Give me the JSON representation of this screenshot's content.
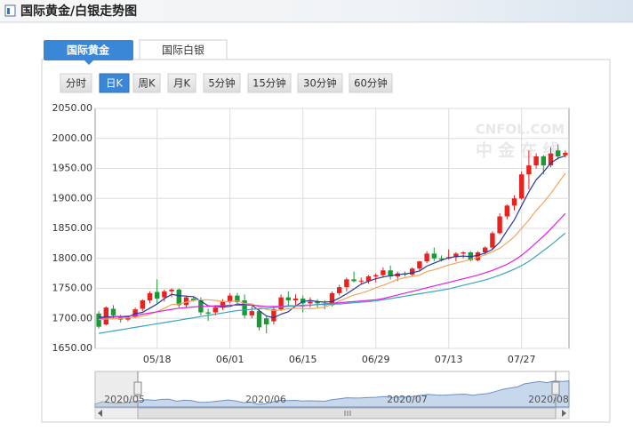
{
  "header": {
    "title": "国际黄金/白银走势图"
  },
  "tabs": [
    "国际黄金",
    "国际白银"
  ],
  "buttons": [
    "分时",
    "日K",
    "周K",
    "月K",
    "5分钟",
    "15分钟",
    "30分钟",
    "60分钟"
  ],
  "watermark": [
    "CNFOL.COM",
    "中金在线"
  ],
  "chart_data": {
    "type": "candlestick",
    "categories": [
      null,
      null,
      null,
      null,
      null,
      null,
      null,
      null,
      "05/18",
      null,
      null,
      null,
      null,
      null,
      null,
      null,
      null,
      null,
      "06/01",
      null,
      null,
      null,
      null,
      null,
      null,
      null,
      null,
      null,
      "06/15",
      null,
      null,
      null,
      null,
      null,
      null,
      null,
      null,
      null,
      "06/29",
      null,
      null,
      null,
      null,
      null,
      null,
      null,
      null,
      null,
      "07/13",
      null,
      null,
      null,
      null,
      null,
      null,
      null,
      null,
      null,
      "07/27",
      null,
      null,
      null,
      null,
      null,
      null
    ],
    "open": [
      1708,
      1690,
      1716,
      1703,
      1698,
      1702,
      1716,
      1730,
      1744,
      1735,
      1745,
      1748,
      1722,
      1733,
      1730,
      1710,
      1710,
      1718,
      1728,
      1738,
      1730,
      1705,
      1712,
      1700,
      1695,
      1715,
      1735,
      1730,
      1733,
      1725,
      1728,
      1725,
      1722,
      1742,
      1752,
      1765,
      1762,
      1762,
      1770,
      1772,
      1780,
      1770,
      1775,
      1773,
      1783,
      1795,
      1808,
      1800,
      1800,
      1802,
      1808,
      1810,
      1797,
      1810,
      1818,
      1842,
      1870,
      1888,
      1900,
      1940,
      1955,
      1970,
      1955,
      1980,
      1972
    ],
    "high": [
      1712,
      1720,
      1722,
      1706,
      1704,
      1718,
      1732,
      1745,
      1765,
      1748,
      1750,
      1750,
      1738,
      1736,
      1735,
      1716,
      1722,
      1732,
      1742,
      1742,
      1740,
      1720,
      1715,
      1705,
      1720,
      1740,
      1745,
      1740,
      1738,
      1735,
      1732,
      1730,
      1745,
      1756,
      1768,
      1778,
      1768,
      1772,
      1775,
      1785,
      1788,
      1778,
      1778,
      1785,
      1796,
      1812,
      1818,
      1805,
      1815,
      1810,
      1812,
      1812,
      1812,
      1820,
      1845,
      1875,
      1890,
      1905,
      1945,
      1980,
      1975,
      1972,
      1985,
      1990,
      1980
    ],
    "low": [
      1683,
      1688,
      1700,
      1693,
      1695,
      1700,
      1712,
      1725,
      1725,
      1728,
      1735,
      1718,
      1718,
      1728,
      1705,
      1696,
      1705,
      1714,
      1725,
      1725,
      1700,
      1700,
      1680,
      1675,
      1690,
      1712,
      1720,
      1720,
      1710,
      1718,
      1718,
      1715,
      1720,
      1738,
      1745,
      1760,
      1758,
      1758,
      1760,
      1768,
      1765,
      1762,
      1770,
      1770,
      1780,
      1792,
      1795,
      1795,
      1798,
      1795,
      1800,
      1795,
      1795,
      1805,
      1815,
      1840,
      1865,
      1880,
      1898,
      1915,
      1950,
      1940,
      1952,
      1965,
      1968
    ],
    "close": [
      1686,
      1718,
      1705,
      1698,
      1702,
      1715,
      1730,
      1742,
      1733,
      1745,
      1748,
      1722,
      1735,
      1730,
      1710,
      1708,
      1718,
      1728,
      1738,
      1727,
      1705,
      1712,
      1685,
      1690,
      1715,
      1735,
      1730,
      1733,
      1725,
      1728,
      1725,
      1722,
      1742,
      1752,
      1765,
      1762,
      1763,
      1770,
      1772,
      1780,
      1770,
      1775,
      1773,
      1783,
      1795,
      1808,
      1800,
      1798,
      1802,
      1808,
      1810,
      1797,
      1810,
      1818,
      1842,
      1870,
      1888,
      1900,
      1940,
      1955,
      1970,
      1955,
      1975,
      1970,
      1976
    ],
    "up_color": "#e8231f",
    "down_color": "#1a9a35",
    "series": [
      {
        "color": "#26389a",
        "values": [
          1702,
          1702,
          1703,
          1703,
          1702,
          1708,
          1710,
          1717,
          1724,
          1733,
          1740,
          1738,
          1737,
          1736,
          1729,
          1721,
          1720,
          1719,
          1720,
          1724,
          1723,
          1722,
          1713,
          1704,
          1701,
          1707,
          1711,
          1721,
          1728,
          1730,
          1728,
          1727,
          1728,
          1734,
          1741,
          1749,
          1757,
          1762,
          1766,
          1769,
          1771,
          1773,
          1774,
          1776,
          1779,
          1787,
          1792,
          1797,
          1801,
          1803,
          1804,
          1803,
          1805,
          1809,
          1815,
          1827,
          1846,
          1864,
          1888,
          1911,
          1931,
          1944,
          1959,
          1967,
          1971
        ]
      },
      {
        "color": "#f2a45a",
        "values": [
          1698,
          1699,
          1699,
          1700,
          1701,
          1702,
          1704,
          1707,
          1711,
          1717,
          1723,
          1724,
          1727,
          1730,
          1731,
          1731,
          1730,
          1728,
          1728,
          1729,
          1725,
          1724,
          1719,
          1715,
          1713,
          1714,
          1716,
          1717,
          1716,
          1716,
          1717,
          1719,
          1723,
          1729,
          1734,
          1739,
          1742,
          1746,
          1751,
          1755,
          1760,
          1765,
          1768,
          1770,
          1772,
          1778,
          1781,
          1785,
          1789,
          1792,
          1795,
          1798,
          1802,
          1806,
          1811,
          1817,
          1826,
          1836,
          1850,
          1864,
          1880,
          1893,
          1908,
          1925,
          1942
        ]
      },
      {
        "color": "#e21ee0",
        "values": [
          1700,
          1701,
          1702,
          1703,
          1704,
          1705,
          1707,
          1709,
          1711,
          1713,
          1715,
          1717,
          1718,
          1719,
          1720,
          1720,
          1721,
          1721,
          1722,
          1722,
          1722,
          1722,
          1721,
          1720,
          1720,
          1720,
          1721,
          1721,
          1721,
          1722,
          1723,
          1724,
          1725,
          1726,
          1727,
          1728,
          1729,
          1730,
          1731,
          1733,
          1736,
          1739,
          1742,
          1745,
          1748,
          1751,
          1754,
          1757,
          1760,
          1763,
          1766,
          1769,
          1772,
          1776,
          1780,
          1785,
          1790,
          1797,
          1805,
          1815,
          1826,
          1837,
          1849,
          1862,
          1875
        ]
      },
      {
        "color": "#3aa6b8",
        "values": [
          1675,
          1677,
          1679,
          1681,
          1683,
          1685,
          1687,
          1689,
          1691,
          1693,
          1695,
          1697,
          1699,
          1701,
          1703,
          1705,
          1707,
          1709,
          1711,
          1713,
          1714,
          1715,
          1716,
          1717,
          1718,
          1719,
          1720,
          1721,
          1722,
          1722,
          1723,
          1723,
          1724,
          1724,
          1725,
          1726,
          1727,
          1728,
          1729,
          1731,
          1733,
          1735,
          1737,
          1739,
          1741,
          1743,
          1745,
          1747,
          1749,
          1752,
          1755,
          1758,
          1761,
          1764,
          1768,
          1772,
          1777,
          1782,
          1788,
          1795,
          1804,
          1813,
          1822,
          1832,
          1842
        ]
      }
    ],
    "ylim": [
      1650,
      2050
    ],
    "yticks": [
      {
        "value": 1650,
        "label": "1650.00"
      },
      {
        "value": 1700,
        "label": "1700.00"
      },
      {
        "value": 1750,
        "label": "1750.00"
      },
      {
        "value": 1800,
        "label": "1800.00"
      },
      {
        "value": 1850,
        "label": "1850.00"
      },
      {
        "value": 1900,
        "label": "1900.00"
      },
      {
        "value": 1950,
        "label": "1950.00"
      },
      {
        "value": 2000,
        "label": "2000.00"
      },
      {
        "value": 2050,
        "label": "2050.00"
      }
    ],
    "grid": true,
    "navigator_labels": [
      "2020/05",
      "2020/06",
      "2020/07",
      "2020/08"
    ]
  }
}
